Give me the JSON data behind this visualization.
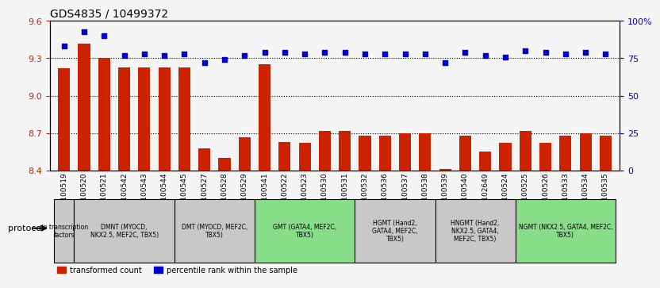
{
  "title": "GDS4835 / 10499372",
  "samples": [
    "GSM1100519",
    "GSM1100520",
    "GSM1100521",
    "GSM1100542",
    "GSM1100543",
    "GSM1100544",
    "GSM1100545",
    "GSM1100527",
    "GSM1100528",
    "GSM1100529",
    "GSM1100541",
    "GSM1100522",
    "GSM1100523",
    "GSM1100530",
    "GSM1100531",
    "GSM1100532",
    "GSM1100536",
    "GSM1100537",
    "GSM1100538",
    "GSM1100539",
    "GSM1100540",
    "GSM1102649",
    "GSM1100524",
    "GSM1100525",
    "GSM1100526",
    "GSM1100533",
    "GSM1100534",
    "GSM1100535"
  ],
  "bar_values": [
    9.22,
    9.42,
    9.3,
    9.23,
    9.23,
    9.23,
    9.23,
    8.58,
    8.5,
    8.67,
    9.25,
    8.63,
    8.62,
    8.72,
    8.72,
    8.68,
    8.68,
    8.7,
    8.7,
    8.41,
    8.68,
    8.55,
    8.62,
    8.72,
    8.62,
    8.68,
    8.7,
    8.68
  ],
  "dot_values": [
    83,
    93,
    90,
    77,
    78,
    77,
    78,
    72,
    74,
    77,
    79,
    79,
    78,
    79,
    79,
    78,
    78,
    78,
    78,
    72,
    79,
    77,
    76,
    80,
    79,
    78,
    79,
    78
  ],
  "ylim_left": [
    8.4,
    9.6
  ],
  "ylim_right": [
    0,
    100
  ],
  "yticks_left": [
    8.4,
    8.7,
    9.0,
    9.3,
    9.6
  ],
  "yticks_right": [
    0,
    25,
    50,
    75,
    100
  ],
  "bar_color": "#cc2200",
  "dot_color": "#0000cc",
  "bg_color": "#f0f0f0",
  "plot_bg": "#ffffff",
  "groups": [
    {
      "label": "no transcription\nfactors",
      "start": 0,
      "end": 1,
      "color": "#c8c8c8"
    },
    {
      "label": "DMNT (MYOCD,\nNKX2.5, MEF2C, TBX5)",
      "start": 1,
      "end": 6,
      "color": "#c8c8c8"
    },
    {
      "label": "DMT (MYOCD, MEF2C,\nTBX5)",
      "start": 6,
      "end": 10,
      "color": "#c8c8c8"
    },
    {
      "label": "GMT (GATA4, MEF2C,\nTBX5)",
      "start": 10,
      "end": 15,
      "color": "#88dd88"
    },
    {
      "label": "HGMT (Hand2,\nGATA4, MEF2C,\nTBX5)",
      "start": 15,
      "end": 19,
      "color": "#c8c8c8"
    },
    {
      "label": "HNGMT (Hand2,\nNKX2.5, GATA4,\nMEF2C, TBX5)",
      "start": 19,
      "end": 23,
      "color": "#c8c8c8"
    },
    {
      "label": "NGMT (NKX2.5, GATA4, MEF2C,\nTBX5)",
      "start": 23,
      "end": 28,
      "color": "#88dd88"
    }
  ],
  "protocol_label": "protocol",
  "legend_items": [
    {
      "label": "transformed count",
      "color": "#cc2200",
      "marker": "s"
    },
    {
      "label": "percentile rank within the sample",
      "color": "#0000cc",
      "marker": "s"
    }
  ]
}
